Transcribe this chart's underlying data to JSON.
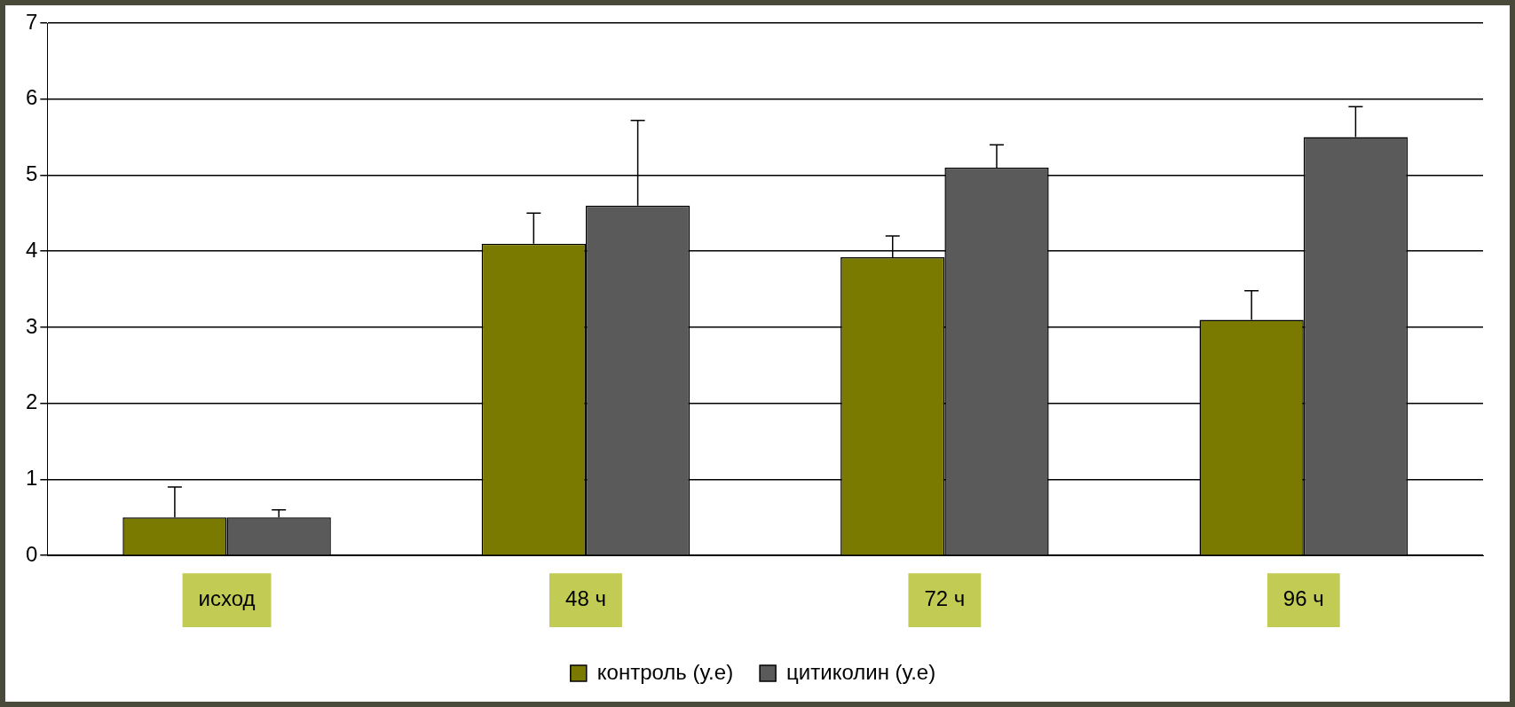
{
  "chart_data": {
    "type": "bar",
    "categories": [
      "исход",
      "48 ч",
      "72 ч",
      "96 ч"
    ],
    "series": [
      {
        "name": "контроль (у.е)",
        "color": "#7a7a00",
        "values": [
          0.5,
          4.1,
          3.92,
          3.1
        ],
        "errors": [
          [
            0.5,
            0.9
          ],
          [
            4.1,
            4.5
          ],
          [
            3.92,
            4.2
          ],
          [
            3.1,
            3.48
          ]
        ]
      },
      {
        "name": "цитиколин (у.е)",
        "color": "#5a5a5a",
        "values": [
          0.5,
          4.6,
          5.1,
          5.5
        ],
        "errors": [
          [
            0.5,
            0.6
          ],
          [
            4.6,
            5.72
          ],
          [
            5.1,
            5.4
          ],
          [
            5.5,
            5.9
          ]
        ]
      }
    ],
    "ylim": [
      0,
      7
    ],
    "yticks": [
      0,
      1,
      2,
      3,
      4,
      5,
      6,
      7
    ],
    "grid": "y",
    "legend": "bottom"
  }
}
